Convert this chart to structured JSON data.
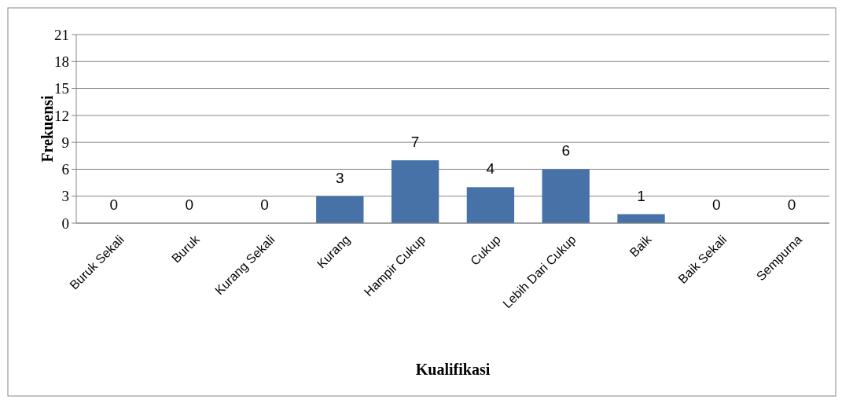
{
  "chart_data": {
    "type": "bar",
    "xlabel": "Kualifikasi",
    "ylabel": "Frekuensi",
    "categories": [
      "Buruk Sekali",
      "Buruk",
      "Kurang Sekali",
      "Kurang",
      "Hampir Cukup",
      "Cukup",
      "Lebih Dari Cukup",
      "Baik",
      "Baik Sekali",
      "Sempurna"
    ],
    "values": [
      0,
      0,
      0,
      3,
      7,
      4,
      6,
      1,
      0,
      0
    ],
    "color": "#4672a8",
    "ylim": [
      0,
      21
    ],
    "yticks": [
      0,
      3,
      6,
      9,
      12,
      15,
      18,
      21
    ],
    "grid": "y",
    "data_labels": true
  }
}
